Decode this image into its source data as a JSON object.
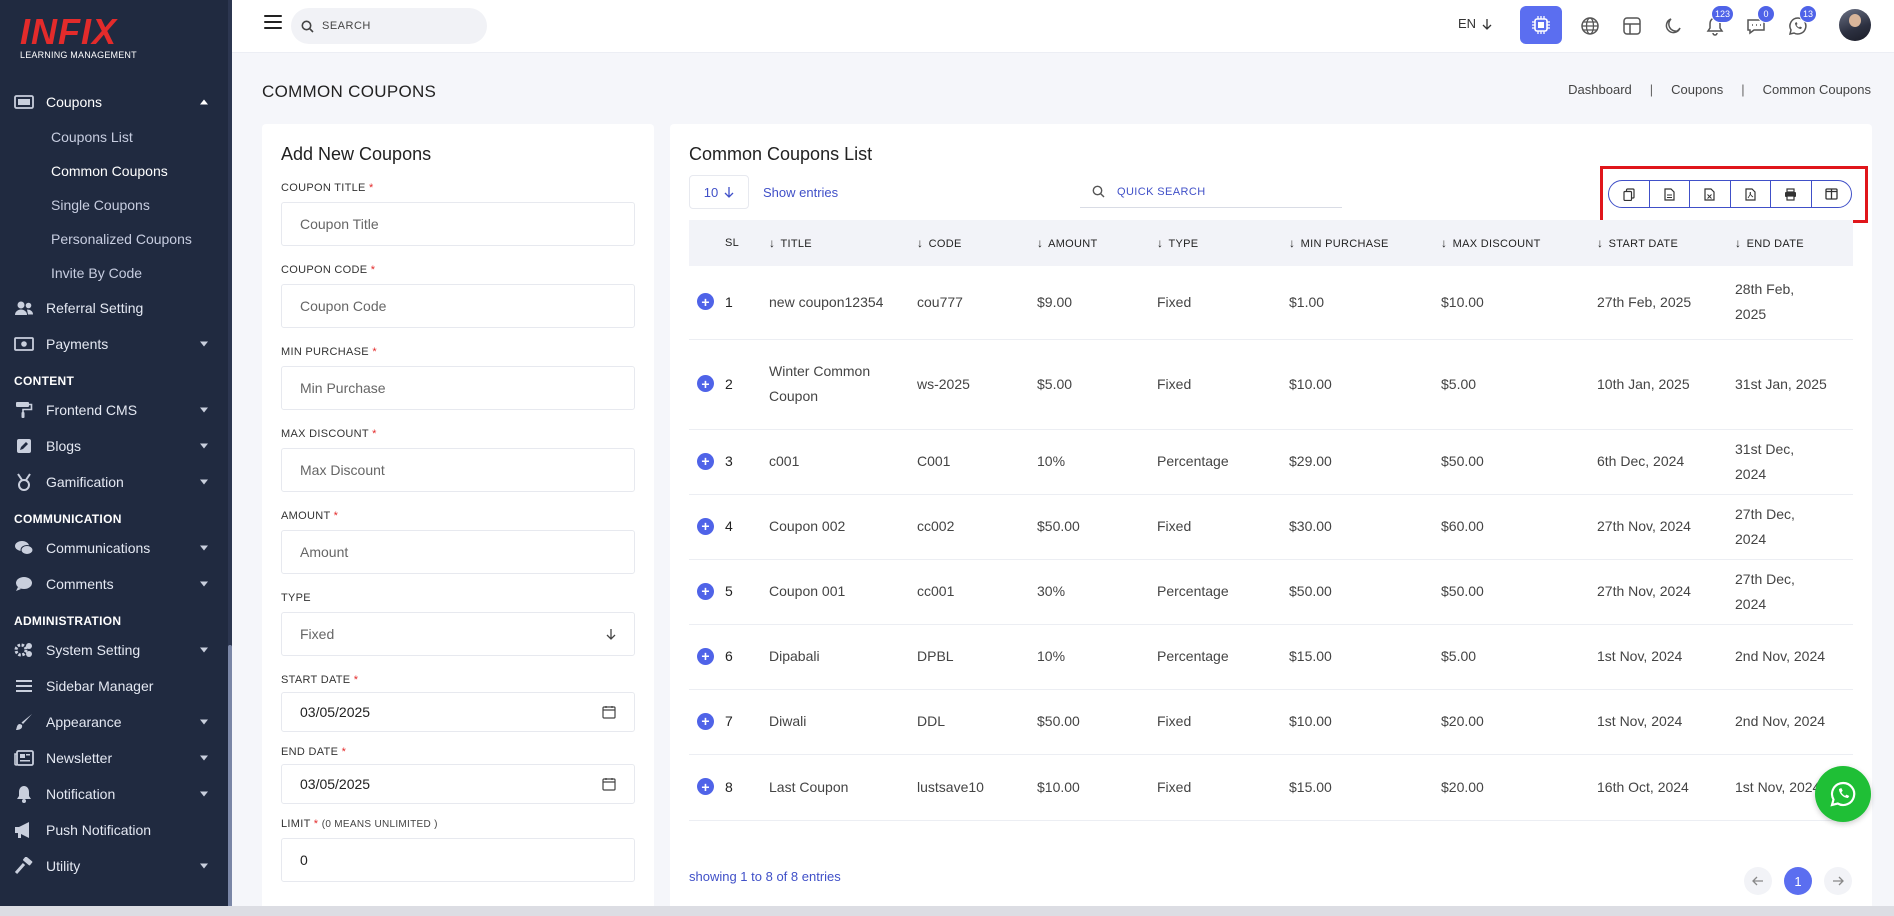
{
  "brand": {
    "logo": "INFIX",
    "tagline": "LEARNING MANAGEMENT"
  },
  "sidebar": {
    "coupons": {
      "label": "Coupons",
      "sub": [
        "Coupons List",
        "Common Coupons",
        "Single Coupons",
        "Personalized Coupons",
        "Invite By Code"
      ]
    },
    "referral": "Referral Setting",
    "payments": "Payments",
    "section_content": "CONTENT",
    "frontend": "Frontend CMS",
    "blogs": "Blogs",
    "gamification": "Gamification",
    "section_communication": "COMMUNICATION",
    "communications": "Communications",
    "comments": "Comments",
    "section_admin": "ADMINISTRATION",
    "system": "System Setting",
    "sidebar_manager": "Sidebar Manager",
    "appearance": "Appearance",
    "newsletter": "Newsletter",
    "notification": "Notification",
    "push": "Push Notification",
    "utility": "Utility"
  },
  "topbar": {
    "search_placeholder": "SEARCH",
    "lang": "EN",
    "badges": {
      "notifications": "123",
      "messages": "0",
      "whatsapp": "13"
    }
  },
  "page": {
    "title": "COMMON COUPONS",
    "breadcrumb": [
      "Dashboard",
      "Coupons",
      "Common Coupons"
    ]
  },
  "form": {
    "title": "Add New Coupons",
    "coupon_title_label": "COUPON TITLE",
    "coupon_title_ph": "Coupon Title",
    "coupon_code_label": "COUPON CODE",
    "coupon_code_ph": "Coupon Code",
    "min_purchase_label": "MIN PURCHASE",
    "min_purchase_ph": "Min Purchase",
    "max_discount_label": "MAX DISCOUNT",
    "max_discount_ph": "Max Discount",
    "amount_label": "AMOUNT",
    "amount_ph": "Amount",
    "type_label": "TYPE",
    "type_value": "Fixed",
    "start_label": "START DATE",
    "start_value": "03/05/2025",
    "end_label": "END DATE",
    "end_value": "03/05/2025",
    "limit_label": "LIMIT",
    "limit_hint": "(0 MEANS UNLIMITED )",
    "limit_value": "0",
    "required_mark": "*"
  },
  "list": {
    "title": "Common Coupons List",
    "entries_value": "10",
    "entries_label": "Show entries",
    "quick_search": "QUICK SEARCH",
    "columns": [
      "SL",
      "TITLE",
      "CODE",
      "AMOUNT",
      "TYPE",
      "MIN PURCHASE",
      "MAX DISCOUNT",
      "START DATE",
      "END DATE"
    ],
    "rows": [
      {
        "sl": "1",
        "title": "new coupon12354",
        "code": "cou777",
        "amount": "$9.00",
        "type": "Fixed",
        "min": "$1.00",
        "max": "$10.00",
        "start": "27th Feb, 2025",
        "end": "28th Feb, 2025"
      },
      {
        "sl": "2",
        "title": "Winter Common Coupon",
        "code": "ws-2025",
        "amount": "$5.00",
        "type": "Fixed",
        "min": "$10.00",
        "max": "$5.00",
        "start": "10th Jan, 2025",
        "end": "31st Jan, 2025"
      },
      {
        "sl": "3",
        "title": "c001",
        "code": "C001",
        "amount": "10%",
        "type": "Percentage",
        "min": "$29.00",
        "max": "$50.00",
        "start": "6th Dec, 2024",
        "end": "31st Dec, 2024"
      },
      {
        "sl": "4",
        "title": "Coupon 002",
        "code": "cc002",
        "amount": "$50.00",
        "type": "Fixed",
        "min": "$30.00",
        "max": "$60.00",
        "start": "27th Nov, 2024",
        "end": "27th Dec, 2024"
      },
      {
        "sl": "5",
        "title": "Coupon 001",
        "code": "cc001",
        "amount": "30%",
        "type": "Percentage",
        "min": "$50.00",
        "max": "$50.00",
        "start": "27th Nov, 2024",
        "end": "27th Dec, 2024"
      },
      {
        "sl": "6",
        "title": "Dipabali",
        "code": "DPBL",
        "amount": "10%",
        "type": "Percentage",
        "min": "$15.00",
        "max": "$5.00",
        "start": "1st Nov, 2024",
        "end": "2nd Nov, 2024"
      },
      {
        "sl": "7",
        "title": "Diwali",
        "code": "DDL",
        "amount": "$50.00",
        "type": "Fixed",
        "min": "$10.00",
        "max": "$20.00",
        "start": "1st Nov, 2024",
        "end": "2nd Nov, 2024"
      },
      {
        "sl": "8",
        "title": "Last Coupon",
        "code": "lustsave10",
        "amount": "$10.00",
        "type": "Fixed",
        "min": "$15.00",
        "max": "$20.00",
        "start": "16th Oct, 2024",
        "end": "1st Nov, 2024"
      }
    ],
    "showing": "showing 1 to 8 of 8 entries",
    "current_page": "1"
  },
  "colors": {
    "accent": "#5b6ef0",
    "sidebar": "#202a40",
    "highlight": "#e0161b",
    "whatsapp": "#1fbf36"
  }
}
